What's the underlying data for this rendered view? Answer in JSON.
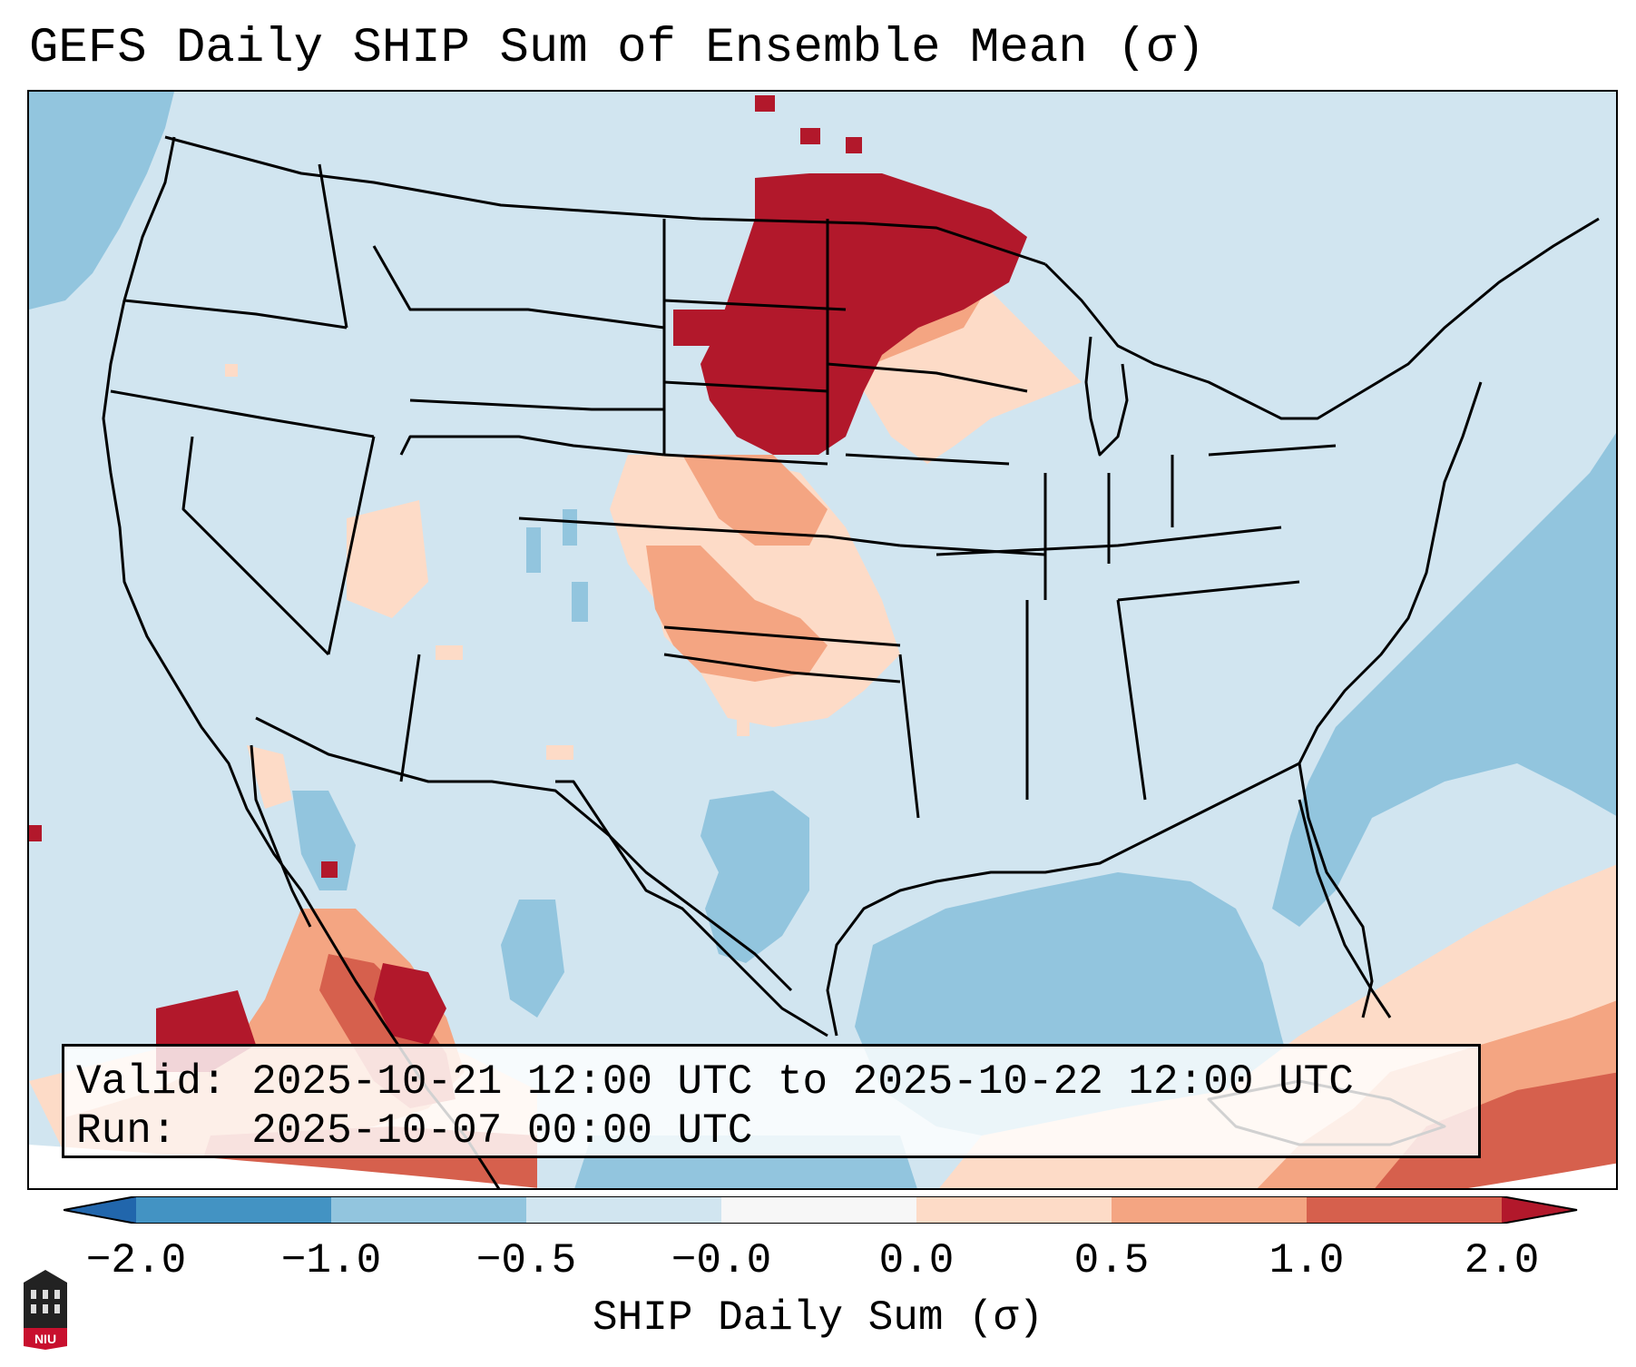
{
  "title": "GEFS Daily SHIP Sum of Ensemble Mean (σ)",
  "info": {
    "valid_label": "Valid:",
    "valid_value": "2025-10-21 12:00 UTC to 2025-10-22 12:00 UTC",
    "run_label": "Run:",
    "run_value": "2025-10-07 00:00 UTC"
  },
  "colorbar": {
    "label": "SHIP Daily Sum (σ)",
    "ticks": [
      "−2.0",
      "−1.0",
      "−0.5",
      "−0.0",
      "0.0",
      "0.5",
      "1.0",
      "2.0"
    ],
    "colors": {
      "below": "#2166ac",
      "bin_neg2_neg1": "#4393c3",
      "bin_neg1_neg05": "#92c5de",
      "bin_neg05_0": "#d1e5f0",
      "bin_0_05": "#fddbc7",
      "bin_05_1": "#f4a582",
      "bin_1_2": "#d6604d",
      "above": "#b2182b"
    }
  },
  "logo": {
    "text": "NIU",
    "color": "#c8102e"
  }
}
